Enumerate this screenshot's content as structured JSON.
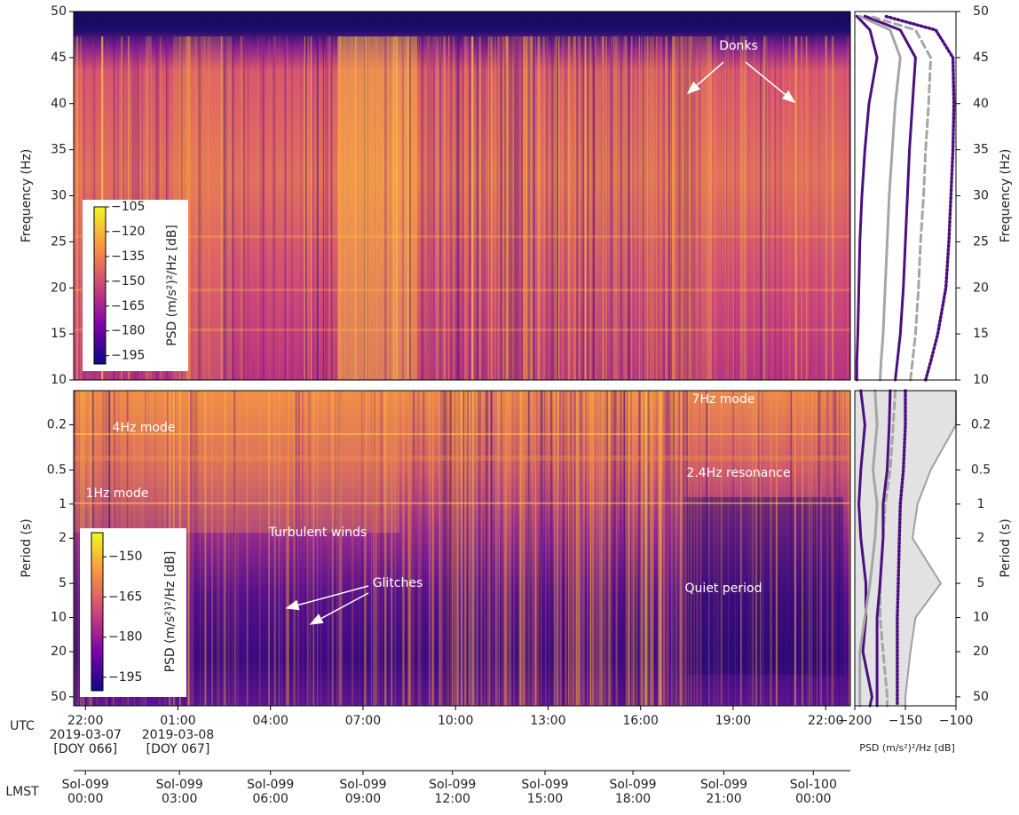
{
  "chart_data": [
    {
      "type": "spectrogram",
      "ylabel": "Frequency (Hz)",
      "ylim": [
        10,
        50
      ],
      "yticks": [
        10,
        15,
        20,
        25,
        30,
        35,
        40,
        45,
        50
      ],
      "xlim": [
        21.62,
        46.8
      ],
      "colorbar": {
        "label": "PSD (m/s²)²/Hz [dB]",
        "clim": [
          -200,
          -105
        ],
        "ticks": [
          {
            "value": -105,
            "label": "−105"
          },
          {
            "value": -120,
            "label": "−120"
          },
          {
            "value": -135,
            "label": "−135"
          },
          {
            "value": -150,
            "label": "−150"
          },
          {
            "value": -165,
            "label": "−165"
          },
          {
            "value": -180,
            "label": "−180"
          },
          {
            "value": -195,
            "label": "−195"
          }
        ]
      },
      "annotations": [
        "Donks"
      ]
    },
    {
      "type": "line",
      "ylabel": "Frequency (Hz)",
      "xlim": [
        -200,
        -100
      ],
      "ylim": [
        10,
        50
      ],
      "yticks": [
        10,
        15,
        20,
        25,
        30,
        35,
        40,
        45,
        50
      ],
      "y": [
        10,
        12,
        15,
        20,
        25,
        30,
        35,
        40,
        45,
        48,
        49.5
      ],
      "series": [
        {
          "color": "#4b0f80",
          "style": "solid",
          "values": [
            -198,
            -198,
            -197,
            -196,
            -195,
            -193,
            -190,
            -186,
            -178,
            -185,
            -198
          ]
        },
        {
          "color": "#a6a6a6",
          "style": "solid",
          "values": [
            -175,
            -174,
            -172,
            -170,
            -168,
            -166,
            -163,
            -160,
            -155,
            -165,
            -195
          ]
        },
        {
          "color": "#4b0f80",
          "style": "solid",
          "values": [
            -160,
            -158,
            -155,
            -152,
            -150,
            -148,
            -146,
            -143,
            -140,
            -155,
            -190
          ]
        },
        {
          "color": "#a6a6a6",
          "style": "dashed",
          "values": [
            -145,
            -143,
            -140,
            -137,
            -135,
            -132,
            -130,
            -127,
            -125,
            -140,
            -185
          ]
        },
        {
          "color": "#4b0f80",
          "style": "dotted",
          "values": [
            -130,
            -125,
            -118,
            -110,
            -107,
            -105,
            -103,
            -102,
            -103,
            -120,
            -170
          ]
        }
      ]
    },
    {
      "type": "spectrogram",
      "ylabel": "Period (s)",
      "ylog": true,
      "y_inverted": true,
      "ylim": [
        0.1,
        60
      ],
      "yticks": [
        0.2,
        0.5,
        1,
        2,
        5,
        10,
        20,
        50
      ],
      "xlim": [
        21.62,
        46.8
      ],
      "xlabel": "UTC",
      "xticks": [
        {
          "value": 22,
          "label": "22:00\n2019-03-07\n[DOY 066]"
        },
        {
          "value": 25,
          "label": "01:00\n2019-03-08\n[DOY 067]"
        },
        {
          "value": 28,
          "label": "04:00"
        },
        {
          "value": 31,
          "label": "07:00"
        },
        {
          "value": 34,
          "label": "10:00"
        },
        {
          "value": 37,
          "label": "13:00"
        },
        {
          "value": 40,
          "label": "16:00"
        },
        {
          "value": 43,
          "label": "19:00"
        },
        {
          "value": 46,
          "label": "22:00"
        }
      ],
      "secondary_xaxis": {
        "label": "LMST",
        "ticks": [
          {
            "value": 22,
            "label": "Sol-099\n00:00"
          },
          {
            "value": 25.05,
            "label": "Sol-099\n03:00"
          },
          {
            "value": 28.0,
            "label": "Sol-099\n06:00"
          },
          {
            "value": 31.0,
            "label": "Sol-099\n09:00"
          },
          {
            "value": 33.9,
            "label": "Sol-099\n12:00"
          },
          {
            "value": 36.9,
            "label": "Sol-099\n15:00"
          },
          {
            "value": 39.75,
            "label": "Sol-099\n18:00"
          },
          {
            "value": 42.7,
            "label": "Sol-099\n21:00"
          },
          {
            "value": 45.6,
            "label": "Sol-100\n00:00"
          }
        ]
      },
      "colorbar": {
        "label": "PSD (m/s²)²/Hz [dB]",
        "clim": [
          -200,
          -141
        ],
        "ticks": [
          {
            "value": -150,
            "label": "−150"
          },
          {
            "value": -165,
            "label": "−165"
          },
          {
            "value": -180,
            "label": "−180"
          },
          {
            "value": -195,
            "label": "−195"
          }
        ]
      },
      "annotations": [
        "7Hz mode",
        "4Hz mode",
        "2.4Hz resonance",
        "1Hz mode",
        "Turbulent winds",
        "Glitches",
        "Quiet period"
      ]
    },
    {
      "type": "line",
      "ylabel": "Period (s)",
      "ylog": true,
      "y_inverted": true,
      "xlim": [
        -200,
        -100
      ],
      "ylim": [
        0.1,
        60
      ],
      "yticks": [
        0.2,
        0.5,
        1,
        2,
        5,
        10,
        20,
        50
      ],
      "xticks": [
        {
          "value": -200,
          "label": "−200"
        },
        {
          "value": -150,
          "label": "−150"
        },
        {
          "value": -100,
          "label": "−100"
        }
      ],
      "xlabel": "PSD (m/s²)²/Hz [dB]",
      "y": [
        0.1,
        0.2,
        0.5,
        1,
        2,
        5,
        10,
        20,
        50,
        60
      ],
      "series": [
        {
          "color": "#a0a0a0",
          "style": "area",
          "values": [
            -100,
            -100,
            -125,
            -138,
            -143,
            -115,
            -140,
            -145,
            -150,
            -150
          ]
        },
        {
          "color": "#4b0f80",
          "style": "solid",
          "values": [
            -194,
            -190,
            -194,
            -196,
            -194,
            -189,
            -189,
            -192,
            -183,
            -185
          ]
        },
        {
          "color": "#a6a6a6",
          "style": "solid",
          "values": [
            -180,
            -178,
            -182,
            -178,
            -180,
            -185,
            -190,
            -195,
            -195,
            -195
          ]
        },
        {
          "color": "#a6a6a6",
          "style": "dashed",
          "values": [
            -160,
            -162,
            -165,
            -170,
            -172,
            -175,
            -175,
            -172,
            -168,
            -168
          ]
        },
        {
          "color": "#4b0f80",
          "style": "solid",
          "values": [
            -165,
            -166,
            -168,
            -172,
            -172,
            -175,
            -178,
            -178,
            -178,
            -178
          ]
        },
        {
          "color": "#4b0f80",
          "style": "dotted",
          "values": [
            -150,
            -150,
            -152,
            -155,
            -156,
            -157,
            -158,
            -158,
            -158,
            -158
          ]
        }
      ]
    }
  ]
}
